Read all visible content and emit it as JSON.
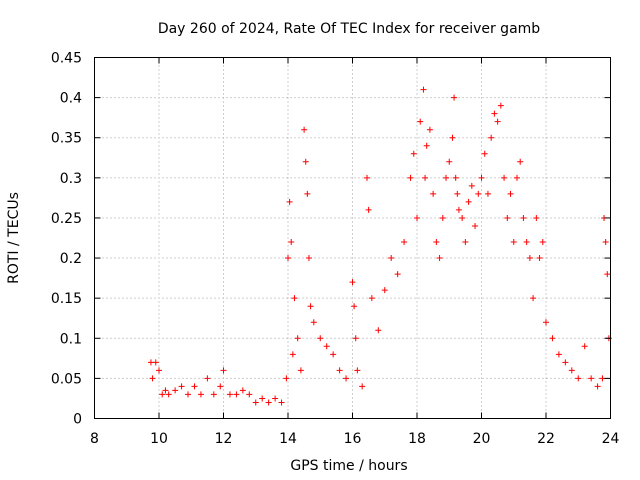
{
  "chart_data": {
    "type": "scatter",
    "title": "Day 260 of 2024, Rate Of TEC Index for receiver gamb",
    "xlabel": "GPS time / hours",
    "ylabel": "ROTI / TECUs",
    "xlim": [
      8,
      24
    ],
    "ylim": [
      0,
      0.45
    ],
    "x_ticks": [
      "8",
      "10",
      "12",
      "14",
      "16",
      "18",
      "20",
      "22",
      "24"
    ],
    "y_ticks": [
      "0",
      "0.05",
      "0.1",
      "0.15",
      "0.2",
      "0.25",
      "0.3",
      "0.35",
      "0.4",
      "0.45"
    ],
    "grid": true,
    "marker": "+",
    "color": "#ff0000",
    "series": [
      {
        "name": "ROTI",
        "x": [
          9.75,
          9.8,
          9.9,
          10.0,
          10.1,
          10.2,
          10.3,
          10.5,
          10.7,
          10.9,
          11.1,
          11.3,
          11.5,
          11.7,
          11.9,
          12.0,
          12.2,
          12.4,
          12.6,
          12.8,
          13.0,
          13.2,
          13.4,
          13.6,
          13.8,
          13.95,
          14.0,
          14.05,
          14.1,
          14.15,
          14.2,
          14.3,
          14.4,
          14.5,
          14.55,
          14.6,
          14.65,
          14.7,
          14.8,
          15.0,
          15.2,
          15.4,
          15.6,
          15.8,
          16.0,
          16.05,
          16.1,
          16.15,
          16.3,
          16.45,
          16.5,
          16.6,
          16.8,
          17.0,
          17.2,
          17.4,
          17.6,
          17.8,
          17.9,
          18.0,
          18.1,
          18.2,
          18.25,
          18.3,
          18.4,
          18.5,
          18.6,
          18.7,
          18.8,
          18.9,
          19.0,
          19.1,
          19.15,
          19.2,
          19.25,
          19.3,
          19.4,
          19.5,
          19.6,
          19.7,
          19.8,
          19.9,
          20.0,
          20.1,
          20.2,
          20.3,
          20.4,
          20.5,
          20.6,
          20.7,
          20.8,
          20.9,
          21.0,
          21.1,
          21.2,
          21.3,
          21.4,
          21.5,
          21.6,
          21.7,
          21.8,
          21.9,
          22.0,
          22.2,
          22.4,
          22.6,
          22.8,
          23.0,
          23.2,
          23.4,
          23.6,
          23.75,
          23.8,
          23.85,
          23.9,
          23.95
        ],
        "y": [
          0.07,
          0.05,
          0.07,
          0.06,
          0.03,
          0.035,
          0.03,
          0.035,
          0.04,
          0.03,
          0.04,
          0.03,
          0.05,
          0.03,
          0.04,
          0.06,
          0.03,
          0.03,
          0.035,
          0.03,
          0.02,
          0.025,
          0.02,
          0.025,
          0.02,
          0.05,
          0.2,
          0.27,
          0.22,
          0.08,
          0.15,
          0.1,
          0.06,
          0.36,
          0.32,
          0.28,
          0.2,
          0.14,
          0.12,
          0.1,
          0.09,
          0.08,
          0.06,
          0.05,
          0.17,
          0.14,
          0.1,
          0.06,
          0.04,
          0.3,
          0.26,
          0.15,
          0.11,
          0.16,
          0.2,
          0.18,
          0.22,
          0.3,
          0.33,
          0.25,
          0.37,
          0.41,
          0.3,
          0.34,
          0.36,
          0.28,
          0.22,
          0.2,
          0.25,
          0.3,
          0.32,
          0.35,
          0.4,
          0.3,
          0.28,
          0.26,
          0.25,
          0.22,
          0.27,
          0.29,
          0.24,
          0.28,
          0.3,
          0.33,
          0.28,
          0.35,
          0.38,
          0.37,
          0.39,
          0.3,
          0.25,
          0.28,
          0.22,
          0.3,
          0.32,
          0.25,
          0.22,
          0.2,
          0.15,
          0.25,
          0.2,
          0.22,
          0.12,
          0.1,
          0.08,
          0.07,
          0.06,
          0.05,
          0.09,
          0.05,
          0.04,
          0.05,
          0.25,
          0.22,
          0.18,
          0.1
        ]
      }
    ]
  }
}
